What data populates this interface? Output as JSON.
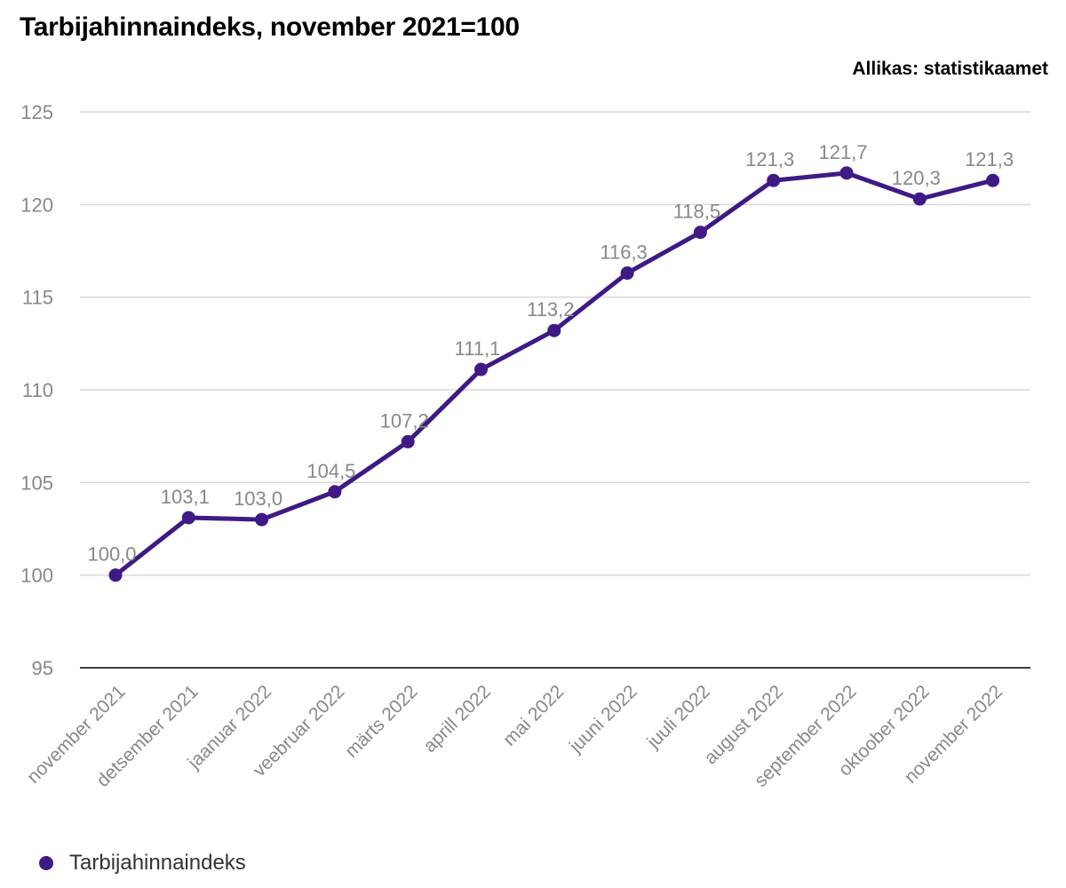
{
  "title": "Tarbijahinnaindeks, november 2021=100",
  "source": "Allikas: statistikaamet",
  "colors": {
    "series": "#3f1a85",
    "grid": "#d9d9d9",
    "axis": "#000000",
    "label": "#888888"
  },
  "chart_data": {
    "type": "line",
    "title": "Tarbijahinnaindeks, november 2021=100",
    "xlabel": "",
    "ylabel": "",
    "ylim": [
      95,
      125
    ],
    "yticks": [
      95,
      100,
      105,
      110,
      115,
      120,
      125
    ],
    "grid": true,
    "legend_position": "bottom-left",
    "categories": [
      "november 2021",
      "detsember 2021",
      "jaanuar 2022",
      "veebruar 2022",
      "märts 2022",
      "aprill 2022",
      "mai 2022",
      "juuni 2022",
      "juuli 2022",
      "august 2022",
      "september 2022",
      "oktoober 2022",
      "november 2022"
    ],
    "series": [
      {
        "name": "Tarbijahinnaindeks",
        "values": [
          100.0,
          103.1,
          103.0,
          104.5,
          107.2,
          111.1,
          113.2,
          116.3,
          118.5,
          121.3,
          121.7,
          120.3,
          121.3
        ],
        "labels": [
          "100,0",
          "103,1",
          "103,0",
          "104,5",
          "107,2",
          "111,1",
          "113,2",
          "116,3",
          "118,5",
          "121,3",
          "121,7",
          "120,3",
          "121,3"
        ]
      }
    ]
  }
}
